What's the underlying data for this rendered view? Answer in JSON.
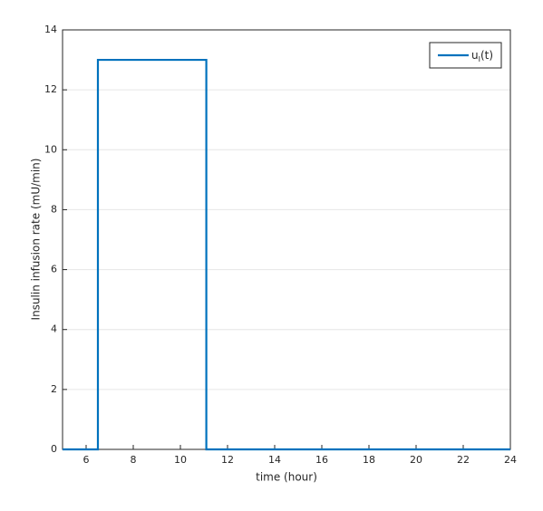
{
  "chart_data": {
    "type": "line",
    "x": [
      5,
      6.5,
      6.5,
      11.1,
      11.1,
      24
    ],
    "series": [
      {
        "name": "u_I(t)",
        "color": "#0072bd",
        "values": [
          0,
          0,
          13,
          13,
          0,
          0
        ]
      }
    ],
    "xlabel": "time (hour)",
    "ylabel": "Insulin infusion rate (mU/min)",
    "xlim": [
      5,
      24
    ],
    "xticks": [
      6,
      8,
      10,
      12,
      14,
      16,
      18,
      20,
      22,
      24
    ],
    "ylim": [
      0,
      14
    ],
    "yticks": [
      0,
      2,
      4,
      6,
      8,
      10,
      12,
      14
    ],
    "grid": "y",
    "legend": "upper right"
  }
}
